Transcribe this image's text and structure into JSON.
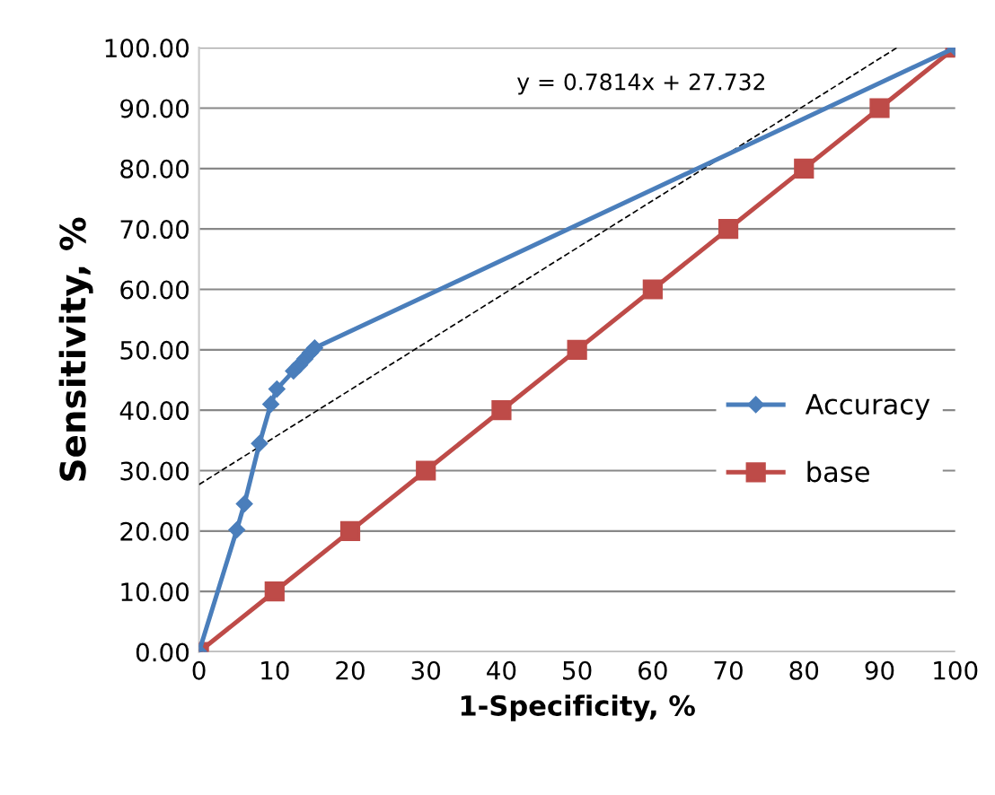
{
  "chart_data": {
    "type": "line",
    "xlabel": "1-Specificity, %",
    "ylabel": "Sensitivity, %",
    "xlim": [
      0,
      100
    ],
    "xticks": [
      0,
      10,
      20,
      30,
      40,
      50,
      60,
      70,
      80,
      90,
      100
    ],
    "ylim": [
      0,
      100
    ],
    "yticks": [
      {
        "value": 0,
        "label": "0.00"
      },
      {
        "value": 10,
        "label": "10.00"
      },
      {
        "value": 20,
        "label": "20.00"
      },
      {
        "value": 30,
        "label": "30.00"
      },
      {
        "value": 40,
        "label": "40.00"
      },
      {
        "value": 50,
        "label": "50.00"
      },
      {
        "value": 60,
        "label": "60.00"
      },
      {
        "value": 70,
        "label": "70.00"
      },
      {
        "value": 80,
        "label": "80.00"
      },
      {
        "value": 90,
        "label": "90.00"
      },
      {
        "value": 100,
        "label": "100.00"
      }
    ],
    "grid": "y",
    "legend": "right",
    "annotations": [
      "y = 0.7814x + 27.732"
    ],
    "series": [
      {
        "name": "Accuracy",
        "color": "#4a7ebb",
        "marker": "diamond",
        "x": [
          0,
          5,
          6,
          8,
          9.5,
          10.3,
          12.5,
          13.3,
          14,
          14.7,
          15.3,
          100
        ],
        "values": [
          0,
          20.2,
          24.5,
          34.5,
          41,
          43.5,
          46.5,
          47.5,
          48.5,
          49.5,
          50.3,
          100
        ]
      },
      {
        "name": "base",
        "color": "#be4b48",
        "marker": "square",
        "x": [
          0,
          10,
          20,
          30,
          40,
          50,
          60,
          70,
          80,
          90,
          100
        ],
        "values": [
          0,
          10,
          20,
          30,
          40,
          50,
          60,
          70,
          80,
          90,
          100
        ]
      },
      {
        "color": "#000000",
        "marker": "none",
        "line_style": "dashed",
        "x": [
          0,
          92.3
        ],
        "values": [
          27.7,
          100
        ]
      }
    ]
  }
}
